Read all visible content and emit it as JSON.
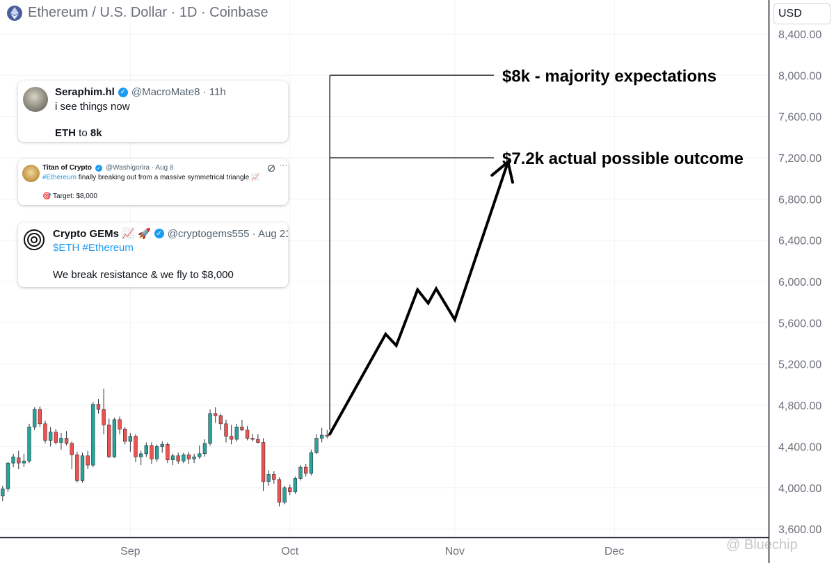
{
  "header": {
    "title": "Ethereum / U.S. Dollar · 1D · Coinbase",
    "currency": "USD",
    "accent": "#4b5e9c"
  },
  "chart_data": {
    "type": "candlestick",
    "y_ticks": [
      "8,400.00",
      "8,000.00",
      "7,600.00",
      "7,200.00",
      "6,800.00",
      "6,400.00",
      "6,000.00",
      "5,600.00",
      "5,200.00",
      "4,800.00",
      "4,400.00",
      "4,000.00",
      "3,600.00"
    ],
    "y_tick_values": [
      8400,
      8000,
      7600,
      7200,
      6800,
      6400,
      6000,
      5600,
      5200,
      4800,
      4400,
      4000,
      3600
    ],
    "ylim": [
      3520,
      8730
    ],
    "x_ticks": [
      {
        "label": "Sep",
        "day": 31
      },
      {
        "label": "Oct",
        "day": 61
      },
      {
        "label": "Nov",
        "day": 92
      },
      {
        "label": "Dec",
        "day": 122
      }
    ],
    "xlim": [
      6.5,
      151
    ],
    "colors": {
      "up": "#26a69a",
      "down": "#ef5350",
      "annotation": "#000000",
      "level": "#333333"
    },
    "candles": [
      {
        "day": 7,
        "o": 3920,
        "h": 4020,
        "l": 3870,
        "c": 3990
      },
      {
        "day": 8,
        "o": 3990,
        "h": 4250,
        "l": 3960,
        "c": 4240
      },
      {
        "day": 9,
        "o": 4240,
        "h": 4330,
        "l": 4200,
        "c": 4300
      },
      {
        "day": 10,
        "o": 4290,
        "h": 4360,
        "l": 4180,
        "c": 4240
      },
      {
        "day": 11,
        "o": 4240,
        "h": 4330,
        "l": 4200,
        "c": 4260
      },
      {
        "day": 12,
        "o": 4260,
        "h": 4620,
        "l": 4240,
        "c": 4590
      },
      {
        "day": 13,
        "o": 4590,
        "h": 4780,
        "l": 4560,
        "c": 4760
      },
      {
        "day": 14,
        "o": 4760,
        "h": 4790,
        "l": 4590,
        "c": 4620
      },
      {
        "day": 15,
        "o": 4620,
        "h": 4650,
        "l": 4430,
        "c": 4460
      },
      {
        "day": 16,
        "o": 4460,
        "h": 4590,
        "l": 4400,
        "c": 4540
      },
      {
        "day": 17,
        "o": 4540,
        "h": 4570,
        "l": 4420,
        "c": 4440
      },
      {
        "day": 18,
        "o": 4440,
        "h": 4530,
        "l": 4370,
        "c": 4480
      },
      {
        "day": 19,
        "o": 4480,
        "h": 4550,
        "l": 4410,
        "c": 4430
      },
      {
        "day": 20,
        "o": 4430,
        "h": 4450,
        "l": 4180,
        "c": 4320
      },
      {
        "day": 21,
        "o": 4320,
        "h": 4350,
        "l": 4050,
        "c": 4070
      },
      {
        "day": 22,
        "o": 4070,
        "h": 4340,
        "l": 4050,
        "c": 4310
      },
      {
        "day": 23,
        "o": 4310,
        "h": 4360,
        "l": 4180,
        "c": 4220
      },
      {
        "day": 24,
        "o": 4220,
        "h": 4830,
        "l": 4200,
        "c": 4810
      },
      {
        "day": 25,
        "o": 4810,
        "h": 4860,
        "l": 4720,
        "c": 4760
      },
      {
        "day": 26,
        "o": 4760,
        "h": 4960,
        "l": 4520,
        "c": 4610
      },
      {
        "day": 27,
        "o": 4610,
        "h": 4670,
        "l": 4290,
        "c": 4300
      },
      {
        "day": 28,
        "o": 4300,
        "h": 4680,
        "l": 4290,
        "c": 4660
      },
      {
        "day": 29,
        "o": 4660,
        "h": 4690,
        "l": 4520,
        "c": 4570
      },
      {
        "day": 30,
        "o": 4570,
        "h": 4590,
        "l": 4420,
        "c": 4450
      },
      {
        "day": 31,
        "o": 4450,
        "h": 4530,
        "l": 4350,
        "c": 4500
      },
      {
        "day": 32,
        "o": 4500,
        "h": 4520,
        "l": 4250,
        "c": 4300
      },
      {
        "day": 33,
        "o": 4300,
        "h": 4360,
        "l": 4220,
        "c": 4330
      },
      {
        "day": 34,
        "o": 4330,
        "h": 4440,
        "l": 4300,
        "c": 4410
      },
      {
        "day": 35,
        "o": 4410,
        "h": 4440,
        "l": 4230,
        "c": 4280
      },
      {
        "day": 36,
        "o": 4280,
        "h": 4420,
        "l": 4250,
        "c": 4400
      },
      {
        "day": 37,
        "o": 4400,
        "h": 4450,
        "l": 4340,
        "c": 4420
      },
      {
        "day": 38,
        "o": 4420,
        "h": 4440,
        "l": 4240,
        "c": 4270
      },
      {
        "day": 39,
        "o": 4270,
        "h": 4330,
        "l": 4220,
        "c": 4310
      },
      {
        "day": 40,
        "o": 4310,
        "h": 4340,
        "l": 4230,
        "c": 4260
      },
      {
        "day": 41,
        "o": 4260,
        "h": 4340,
        "l": 4240,
        "c": 4320
      },
      {
        "day": 42,
        "o": 4320,
        "h": 4350,
        "l": 4230,
        "c": 4280
      },
      {
        "day": 43,
        "o": 4280,
        "h": 4330,
        "l": 4240,
        "c": 4300
      },
      {
        "day": 44,
        "o": 4300,
        "h": 4410,
        "l": 4280,
        "c": 4330
      },
      {
        "day": 45,
        "o": 4330,
        "h": 4470,
        "l": 4300,
        "c": 4430
      },
      {
        "day": 46,
        "o": 4430,
        "h": 4760,
        "l": 4410,
        "c": 4720
      },
      {
        "day": 47,
        "o": 4720,
        "h": 4780,
        "l": 4630,
        "c": 4700
      },
      {
        "day": 48,
        "o": 4700,
        "h": 4720,
        "l": 4560,
        "c": 4620
      },
      {
        "day": 49,
        "o": 4620,
        "h": 4660,
        "l": 4440,
        "c": 4500
      },
      {
        "day": 50,
        "o": 4500,
        "h": 4610,
        "l": 4420,
        "c": 4470
      },
      {
        "day": 51,
        "o": 4470,
        "h": 4620,
        "l": 4450,
        "c": 4590
      },
      {
        "day": 52,
        "o": 4590,
        "h": 4660,
        "l": 4550,
        "c": 4560
      },
      {
        "day": 53,
        "o": 4560,
        "h": 4600,
        "l": 4460,
        "c": 4480
      },
      {
        "day": 54,
        "o": 4480,
        "h": 4520,
        "l": 4450,
        "c": 4470
      },
      {
        "day": 55,
        "o": 4470,
        "h": 4520,
        "l": 4430,
        "c": 4440
      },
      {
        "day": 56,
        "o": 4440,
        "h": 4480,
        "l": 3970,
        "c": 4060
      },
      {
        "day": 57,
        "o": 4060,
        "h": 4170,
        "l": 4020,
        "c": 4130
      },
      {
        "day": 58,
        "o": 4130,
        "h": 4160,
        "l": 4040,
        "c": 4080
      },
      {
        "day": 59,
        "o": 4080,
        "h": 4100,
        "l": 3820,
        "c": 3860
      },
      {
        "day": 60,
        "o": 3860,
        "h": 4020,
        "l": 3840,
        "c": 4000
      },
      {
        "day": 61,
        "o": 4000,
        "h": 4030,
        "l": 3930,
        "c": 3960
      },
      {
        "day": 62,
        "o": 3960,
        "h": 4110,
        "l": 3940,
        "c": 4090
      },
      {
        "day": 63,
        "o": 4090,
        "h": 4220,
        "l": 4070,
        "c": 4200
      },
      {
        "day": 64,
        "o": 4200,
        "h": 4230,
        "l": 4110,
        "c": 4140
      },
      {
        "day": 65,
        "o": 4140,
        "h": 4370,
        "l": 4120,
        "c": 4340
      },
      {
        "day": 66,
        "o": 4340,
        "h": 4520,
        "l": 4330,
        "c": 4480
      },
      {
        "day": 67,
        "o": 4480,
        "h": 4580,
        "l": 4440,
        "c": 4510
      },
      {
        "day": 68,
        "o": 4510,
        "h": 4560,
        "l": 4480,
        "c": 4500
      }
    ],
    "annotations": [
      {
        "label": "$8k - majority expectations",
        "value": 8000
      },
      {
        "label": "$7.2k actual possible outcome",
        "value": 7200
      }
    ],
    "projection": {
      "start_day": 68.5,
      "path": [
        [
          68.5,
          4520
        ],
        [
          79,
          5490
        ],
        [
          81,
          5380
        ],
        [
          85,
          5920
        ],
        [
          87,
          5790
        ],
        [
          88.5,
          5930
        ],
        [
          92,
          5630
        ],
        [
          102,
          7160
        ]
      ]
    }
  },
  "tweets": [
    {
      "name": "Seraphim.hl",
      "handle": "@MacroMate8 · 11h",
      "line1": "i see things now",
      "line2_prefix": "ETH",
      "line2_mid": " to ",
      "line2_bold": "8k"
    },
    {
      "name": "Titan of Crypto",
      "handle": "@Washigorira · Aug 8",
      "hashtag": "#Ethereum",
      "text": " finally breaking out from a massive symmetrical triangle 📈",
      "target": "🎯 Target: $8,000"
    },
    {
      "name": "Crypto GEMs 📈 🚀",
      "handle": "@cryptogems555 · Aug 21",
      "tags": "$ETH #Ethereum",
      "text": "We break resistance & we fly to $8,000"
    }
  ],
  "watermark": "@ Bluechip"
}
